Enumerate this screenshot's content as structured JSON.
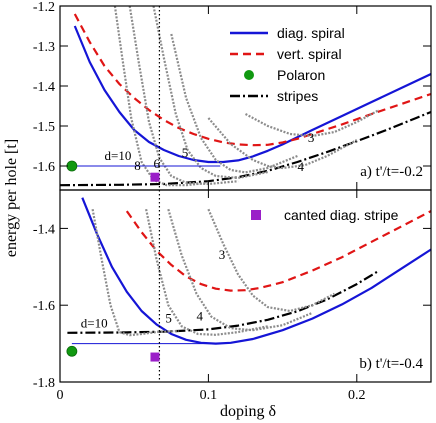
{
  "chart_data": [
    {
      "type": "line",
      "panel_label": "a) t'/t=-0.2",
      "xlim": [
        0,
        0.25
      ],
      "ylim": [
        -1.66,
        -1.2
      ],
      "yticks": [
        -1.6,
        -1.5,
        -1.4,
        -1.3,
        -1.2
      ],
      "ytick_labels": [
        "-1.6",
        "-1.5",
        "-1.4",
        "-1.3",
        "-1.2"
      ],
      "marker_line_x": 0.067,
      "legend": [
        {
          "label": "diag. spiral",
          "style": "solid",
          "color": "#1515d6"
        },
        {
          "label": "vert. spiral",
          "style": "dashed",
          "color": "#e01515"
        },
        {
          "label": "Polaron",
          "style": "circle",
          "color": "#119911"
        },
        {
          "label": "stripes",
          "style": "dashdot",
          "color": "#000000"
        }
      ],
      "series": [
        {
          "name": "diag. spiral",
          "color": "#1515d6",
          "dash": "",
          "x": [
            0.01,
            0.02,
            0.03,
            0.04,
            0.05,
            0.06,
            0.07,
            0.08,
            0.09,
            0.1,
            0.11,
            0.12,
            0.13,
            0.14,
            0.15,
            0.17,
            0.19,
            0.21,
            0.23,
            0.25
          ],
          "y": [
            -1.25,
            -1.34,
            -1.41,
            -1.465,
            -1.51,
            -1.54,
            -1.56,
            -1.575,
            -1.585,
            -1.59,
            -1.59,
            -1.586,
            -1.576,
            -1.562,
            -1.546,
            -1.51,
            -1.475,
            -1.44,
            -1.405,
            -1.37
          ]
        },
        {
          "name": "vert. spiral",
          "color": "#e01515",
          "dash": "8,5",
          "x": [
            0.01,
            0.02,
            0.03,
            0.04,
            0.05,
            0.06,
            0.07,
            0.08,
            0.09,
            0.1,
            0.11,
            0.12,
            0.13,
            0.14,
            0.15,
            0.16,
            0.17,
            0.19,
            0.21,
            0.23,
            0.25
          ],
          "y": [
            -1.22,
            -1.29,
            -1.35,
            -1.395,
            -1.43,
            -1.46,
            -1.485,
            -1.505,
            -1.52,
            -1.532,
            -1.541,
            -1.546,
            -1.548,
            -1.547,
            -1.541,
            -1.532,
            -1.52,
            -1.496,
            -1.47,
            -1.445,
            -1.42
          ]
        },
        {
          "name": "stripes",
          "color": "#000000",
          "dash": "10,3,2,3",
          "x": [
            0.0,
            0.04,
            0.07,
            0.1,
            0.12,
            0.14,
            0.16,
            0.18,
            0.2,
            0.22,
            0.24,
            0.25
          ],
          "y": [
            -1.648,
            -1.647,
            -1.645,
            -1.638,
            -1.628,
            -1.612,
            -1.59,
            -1.565,
            -1.538,
            -1.51,
            -1.48,
            -1.465
          ]
        },
        {
          "name": "d-3",
          "color": "#8c8c8c",
          "dash": "2,1.5",
          "width": 2.2,
          "x": [
            0.125,
            0.14,
            0.155,
            0.17,
            0.185,
            0.2,
            0.215
          ],
          "y": [
            -1.47,
            -1.5,
            -1.52,
            -1.525,
            -1.515,
            -1.49,
            -1.46
          ]
        },
        {
          "name": "d-4",
          "color": "#8c8c8c",
          "dash": "2,1.5",
          "width": 2.2,
          "x": [
            0.1,
            0.115,
            0.13,
            0.14,
            0.15,
            0.165,
            0.18,
            0.2
          ],
          "y": [
            -1.48,
            -1.545,
            -1.585,
            -1.6,
            -1.605,
            -1.598,
            -1.575,
            -1.535
          ]
        },
        {
          "name": "d-5",
          "color": "#8c8c8c",
          "dash": "2,1.5",
          "width": 2.2,
          "x": [
            0.075,
            0.085,
            0.095,
            0.105,
            0.115,
            0.125,
            0.14,
            0.16
          ],
          "y": [
            -1.27,
            -1.43,
            -1.53,
            -1.585,
            -1.61,
            -1.616,
            -1.605,
            -1.575
          ]
        },
        {
          "name": "d-6",
          "color": "#8c8c8c",
          "dash": "2,1.5",
          "width": 2.2,
          "x": [
            0.063,
            0.07,
            0.078,
            0.086,
            0.095,
            0.105,
            0.12,
            0.14
          ],
          "y": [
            -1.2,
            -1.33,
            -1.47,
            -1.56,
            -1.605,
            -1.625,
            -1.63,
            -1.615
          ]
        },
        {
          "name": "d-8",
          "color": "#8c8c8c",
          "dash": "2,1.5",
          "width": 2.2,
          "x": [
            0.047,
            0.053,
            0.06,
            0.067,
            0.075,
            0.085,
            0.1,
            0.12
          ],
          "y": [
            -1.2,
            -1.34,
            -1.49,
            -1.58,
            -1.625,
            -1.642,
            -1.645,
            -1.638
          ]
        },
        {
          "name": "d-10",
          "color": "#8c8c8c",
          "dash": "2,1.5",
          "width": 2.2,
          "x": [
            0.037,
            0.042,
            0.048,
            0.055,
            0.063,
            0.072,
            0.085,
            0.1
          ],
          "y": [
            -1.2,
            -1.33,
            -1.48,
            -1.59,
            -1.635,
            -1.648,
            -1.648,
            -1.642
          ]
        }
      ],
      "hline": {
        "x0": 0.008,
        "x1": 0.108,
        "y": -1.6,
        "color": "#1515d6"
      },
      "polaron": {
        "x": 0.008,
        "y": -1.6
      },
      "canted": {
        "x": 0.064,
        "y": -1.628
      },
      "curve_labels": [
        {
          "text": "d=10",
          "x": 0.03,
          "y": -1.585
        },
        {
          "text": "8",
          "x": 0.05,
          "y": -1.61
        },
        {
          "text": "6",
          "x": 0.063,
          "y": -1.605
        },
        {
          "text": "5",
          "x": 0.082,
          "y": -1.578
        },
        {
          "text": "3",
          "x": 0.167,
          "y": -1.54
        },
        {
          "text": "4",
          "x": 0.16,
          "y": -1.612
        }
      ]
    },
    {
      "type": "line",
      "panel_label": "b) t'/t=-0.4",
      "xlim": [
        0,
        0.25
      ],
      "xticks": [
        0,
        0.1,
        0.2
      ],
      "xtick_labels": [
        "0",
        "0.1",
        "0.2"
      ],
      "xlabel": "doping δ",
      "ylim": [
        -1.8,
        -1.3
      ],
      "yticks": [
        -1.8,
        -1.6,
        -1.4
      ],
      "ytick_labels": [
        "-1.8",
        "-1.6",
        "-1.4"
      ],
      "marker_line_x": 0.067,
      "legend": [
        {
          "label": "canted diag. stripe",
          "style": "square",
          "color": "#9a1fc8"
        }
      ],
      "series": [
        {
          "name": "diag. spiral",
          "color": "#1515d6",
          "dash": "",
          "x": [
            0.015,
            0.025,
            0.035,
            0.045,
            0.055,
            0.065,
            0.075,
            0.085,
            0.095,
            0.105,
            0.115,
            0.13,
            0.15,
            0.17,
            0.19,
            0.21,
            0.23,
            0.25
          ],
          "y": [
            -1.32,
            -1.415,
            -1.5,
            -1.565,
            -1.615,
            -1.65,
            -1.675,
            -1.69,
            -1.698,
            -1.7,
            -1.698,
            -1.688,
            -1.665,
            -1.635,
            -1.598,
            -1.555,
            -1.505,
            -1.455
          ]
        },
        {
          "name": "vert. spiral",
          "color": "#e01515",
          "dash": "8,5",
          "x": [
            0.045,
            0.055,
            0.065,
            0.075,
            0.085,
            0.095,
            0.105,
            0.115,
            0.125,
            0.135,
            0.15,
            0.17,
            0.19,
            0.21,
            0.23,
            0.25
          ],
          "y": [
            -1.355,
            -1.41,
            -1.458,
            -1.495,
            -1.525,
            -1.545,
            -1.557,
            -1.562,
            -1.561,
            -1.555,
            -1.54,
            -1.51,
            -1.475,
            -1.435,
            -1.395,
            -1.355
          ]
        },
        {
          "name": "stripes",
          "color": "#000000",
          "dash": "10,3,2,3",
          "x": [
            0.005,
            0.04,
            0.07,
            0.1,
            0.12,
            0.14,
            0.16,
            0.18,
            0.2,
            0.215
          ],
          "y": [
            -1.672,
            -1.671,
            -1.669,
            -1.663,
            -1.653,
            -1.638,
            -1.616,
            -1.585,
            -1.545,
            -1.51
          ]
        },
        {
          "name": "d-3",
          "color": "#8c8c8c",
          "dash": "2,1.5",
          "width": 2.2,
          "x": [
            0.1,
            0.11,
            0.12,
            0.13,
            0.14,
            0.155,
            0.17,
            0.185
          ],
          "y": [
            -1.35,
            -1.44,
            -1.52,
            -1.575,
            -1.605,
            -1.615,
            -1.6,
            -1.57
          ]
        },
        {
          "name": "d-4",
          "color": "#8c8c8c",
          "dash": "2,1.5",
          "width": 2.2,
          "x": [
            0.073,
            0.082,
            0.092,
            0.102,
            0.115,
            0.13,
            0.15,
            0.17
          ],
          "y": [
            -1.35,
            -1.47,
            -1.57,
            -1.63,
            -1.66,
            -1.665,
            -1.652,
            -1.62
          ]
        },
        {
          "name": "d-5",
          "color": "#8c8c8c",
          "dash": "2,1.5",
          "width": 2.2,
          "x": [
            0.058,
            0.065,
            0.073,
            0.082,
            0.093,
            0.105,
            0.12,
            0.14
          ],
          "y": [
            -1.35,
            -1.48,
            -1.6,
            -1.655,
            -1.675,
            -1.677,
            -1.67,
            -1.655
          ]
        },
        {
          "name": "d-10",
          "color": "#8c8c8c",
          "dash": "2,1.5",
          "width": 2.2,
          "x": [
            0.022,
            0.028,
            0.034,
            0.04,
            0.047,
            0.055,
            0.065,
            0.08
          ],
          "y": [
            -1.35,
            -1.48,
            -1.6,
            -1.67,
            -1.678,
            -1.675,
            -1.67,
            -1.667
          ]
        }
      ],
      "hline": {
        "x0": 0.008,
        "x1": 0.108,
        "y": -1.7,
        "color": "#1515d6"
      },
      "polaron": {
        "x": 0.008,
        "y": -1.72
      },
      "canted": {
        "x": 0.064,
        "y": -1.735
      },
      "curve_labels": [
        {
          "text": "3",
          "x": 0.107,
          "y": -1.48
        },
        {
          "text": "d=10",
          "x": 0.014,
          "y": -1.658
        },
        {
          "text": "5",
          "x": 0.071,
          "y": -1.645
        },
        {
          "text": "4",
          "x": 0.092,
          "y": -1.64
        }
      ]
    }
  ],
  "ylabel": "energy per hole [t]"
}
